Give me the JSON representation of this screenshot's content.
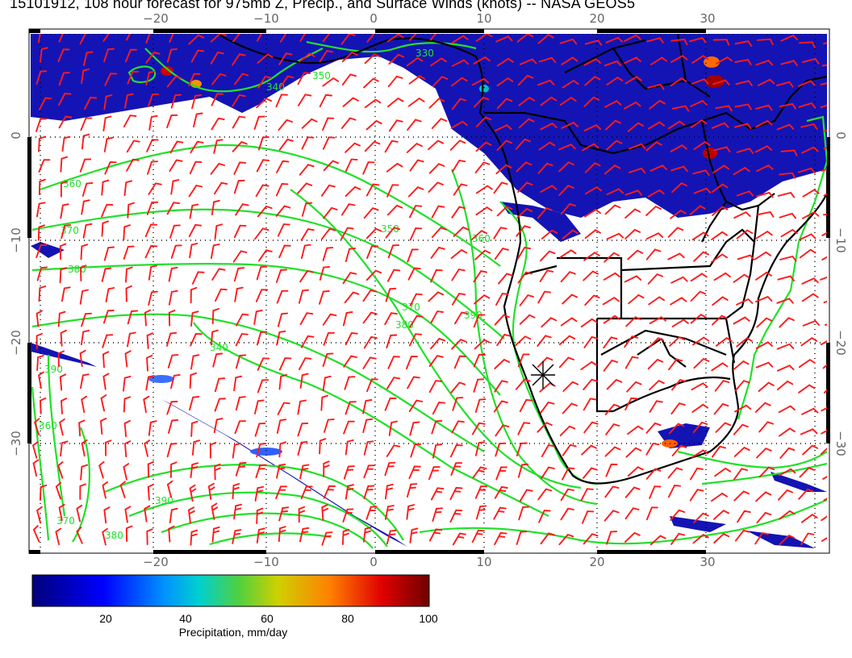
{
  "title": "15101912, 108 hour forecast for 975mb Z, Precip., and Surface Winds (knots) -- NASA GEOS5",
  "map": {
    "lon_ticks_top": [
      "−20",
      "−10",
      "0",
      "10",
      "20",
      "30"
    ],
    "lon_ticks_bottom": [
      "−20",
      "−10",
      "0",
      "10",
      "20",
      "30"
    ],
    "lat_ticks_left": [
      "0",
      "−10",
      "−20",
      "−30"
    ],
    "lat_ticks_right": [
      "0",
      "−10",
      "−20",
      "−30"
    ],
    "lon_range": [
      -30,
      41
    ],
    "lat_range": [
      -39,
      10
    ],
    "grid": "dotted",
    "contour_labels": [
      "360",
      "370",
      "380",
      "390",
      "360",
      "370",
      "380",
      "390",
      "350",
      "340",
      "330",
      "340",
      "370",
      "380",
      "390",
      "350",
      "360"
    ],
    "marker": {
      "symbol": "star-x",
      "lon": 15,
      "lat": -23
    }
  },
  "colorbar": {
    "ticks": [
      "20",
      "40",
      "60",
      "80",
      "100"
    ],
    "label": "Precipitation, mm/day",
    "range": [
      0,
      100
    ],
    "colors": [
      "#00007a",
      "#0000ff",
      "#0080ff",
      "#00d0d0",
      "#40d040",
      "#d0d000",
      "#ff8000",
      "#e00000",
      "#700000"
    ]
  },
  "colors": {
    "contour": "#22e02a",
    "barb": "#ff0000",
    "precip": "#1010b0",
    "coast": "#000000"
  }
}
